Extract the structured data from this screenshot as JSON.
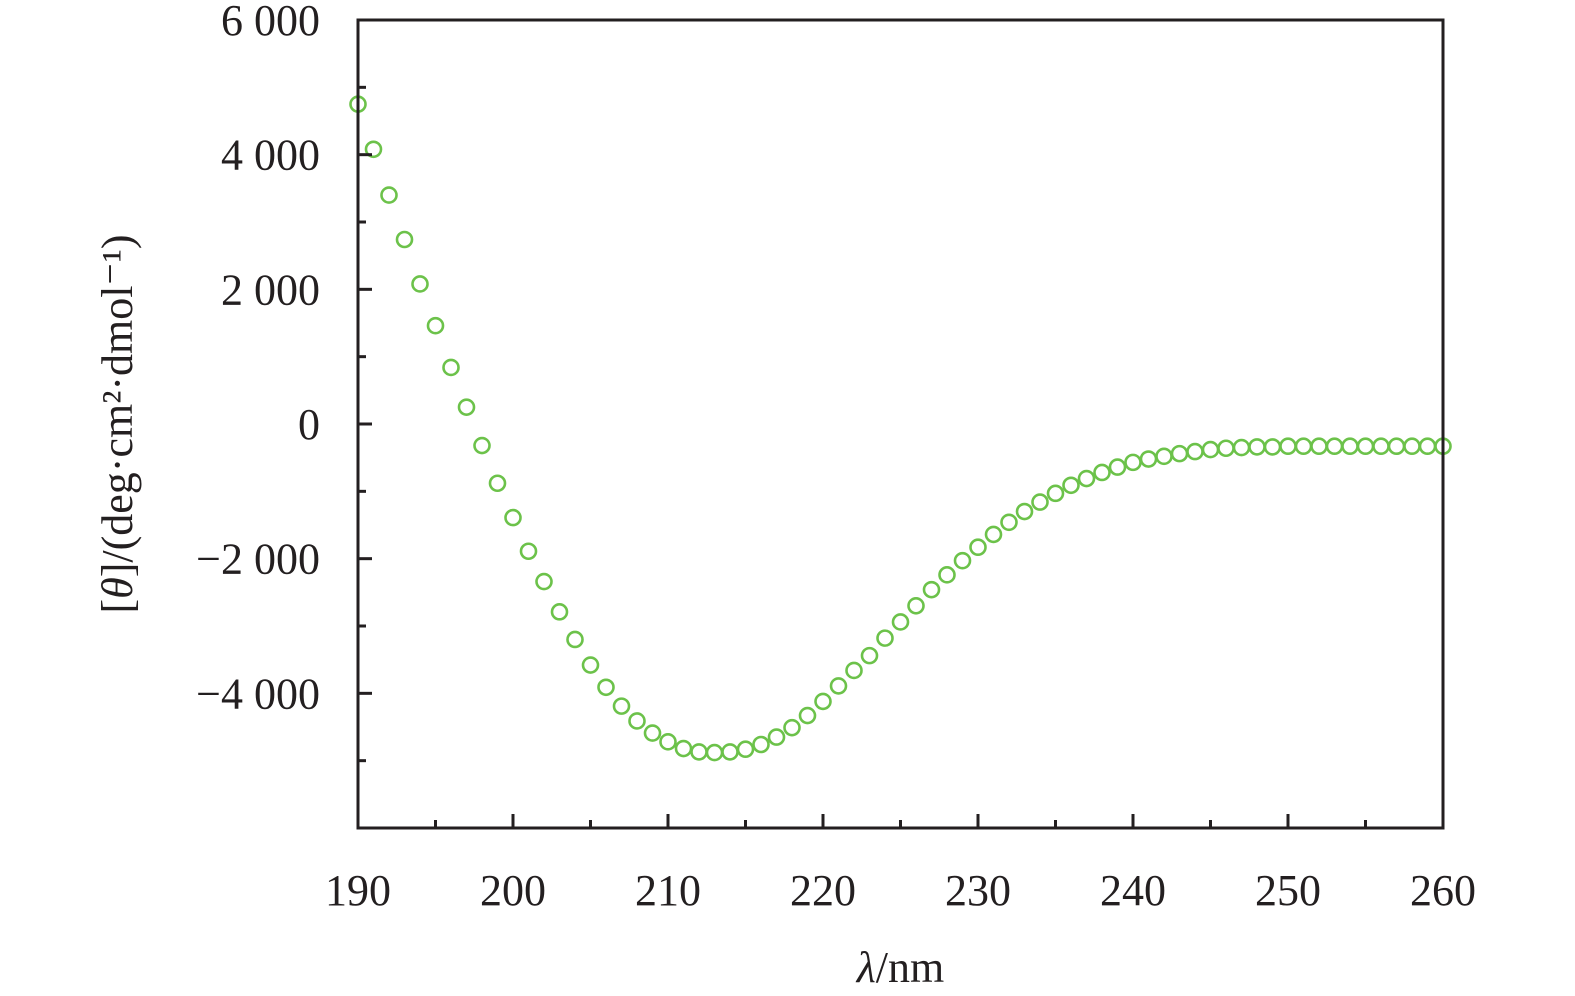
{
  "chart_data": {
    "type": "scatter",
    "title": "",
    "xlabel": {
      "symbol": "λ",
      "rest": "/nm"
    },
    "ylabel": {
      "open": "[",
      "symbol": "θ",
      "rest": "]/(deg·cm²·dmol⁻¹)"
    },
    "xlim": [
      190,
      260
    ],
    "ylim": [
      -6000,
      6000
    ],
    "xticks": [
      190,
      200,
      210,
      220,
      230,
      240,
      250,
      260
    ],
    "xtick_labels": [
      "190",
      "200",
      "210",
      "220",
      "230",
      "240",
      "250",
      "260"
    ],
    "yticks": [
      6000,
      4000,
      2000,
      0,
      -2000,
      -4000
    ],
    "ytick_labels": [
      "6 000",
      "4 000",
      "2 000",
      "0",
      "−2 000",
      "−4 000"
    ],
    "grid": false,
    "legend": null,
    "marker": "open-circle",
    "color": "#6cc24a",
    "series": [
      {
        "x": [
          190,
          191,
          192,
          193,
          194,
          195,
          196,
          197,
          198,
          199,
          200,
          201,
          202,
          203,
          204,
          205,
          206,
          207,
          208,
          209,
          210,
          211,
          212,
          213,
          214,
          215,
          216,
          217,
          218,
          219,
          220,
          221,
          222,
          223,
          224,
          225,
          226,
          227,
          228,
          229,
          230,
          231,
          232,
          233,
          234,
          235,
          236,
          237,
          238,
          239,
          240,
          241,
          242,
          243,
          244,
          245,
          246,
          247,
          248,
          249,
          250,
          251,
          252,
          253,
          254,
          255,
          256,
          257,
          258,
          259,
          260
        ],
        "y": [
          4750,
          4080,
          3400,
          2740,
          2080,
          1460,
          840,
          250,
          -320,
          -880,
          -1390,
          -1890,
          -2340,
          -2790,
          -3200,
          -3580,
          -3910,
          -4190,
          -4410,
          -4590,
          -4720,
          -4820,
          -4870,
          -4880,
          -4870,
          -4830,
          -4760,
          -4650,
          -4510,
          -4330,
          -4120,
          -3890,
          -3660,
          -3440,
          -3180,
          -2940,
          -2700,
          -2460,
          -2240,
          -2030,
          -1830,
          -1640,
          -1460,
          -1300,
          -1160,
          -1030,
          -910,
          -810,
          -720,
          -640,
          -570,
          -520,
          -480,
          -440,
          -410,
          -380,
          -360,
          -350,
          -340,
          -340,
          -330,
          -330,
          -330,
          -330,
          -330,
          -330,
          -330,
          -330,
          -330,
          -330,
          -330
        ]
      }
    ]
  }
}
